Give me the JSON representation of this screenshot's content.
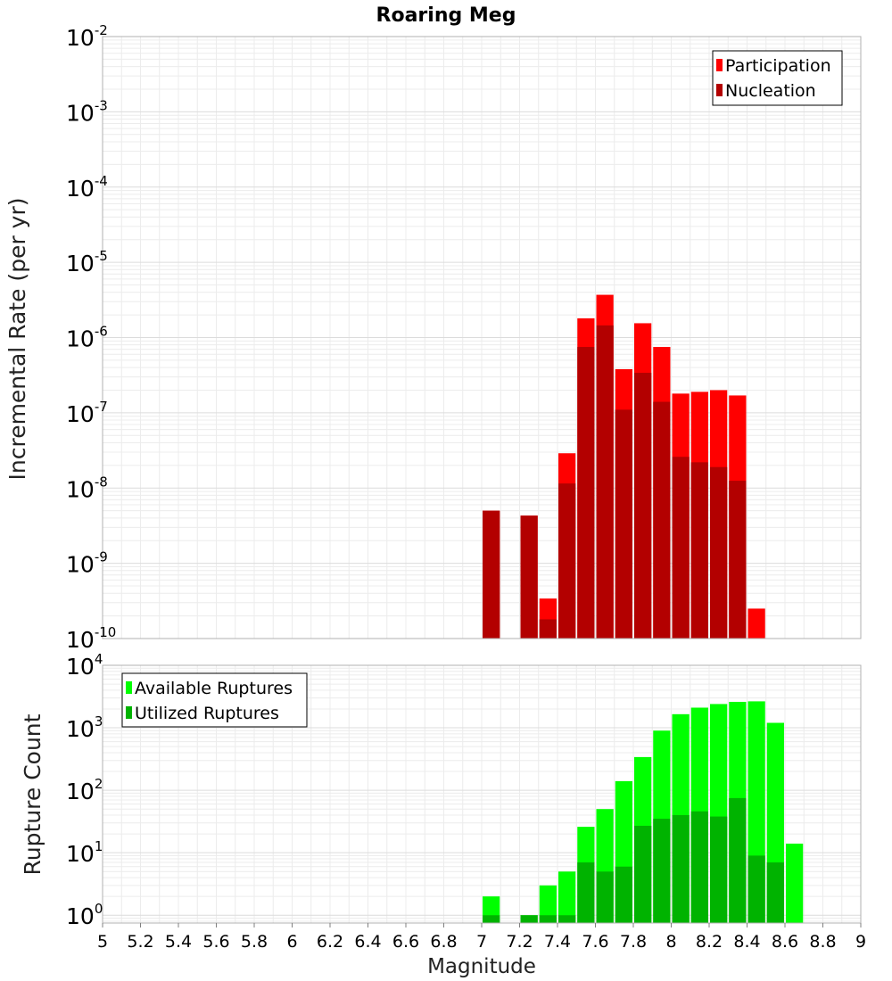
{
  "chart_data": [
    {
      "type": "bar",
      "title": "Roaring Meg",
      "ylabel": "Incremental Rate (per yr)",
      "xlabel": "",
      "yscale": "log",
      "xlim": [
        5,
        9
      ],
      "ylim": [
        1e-10,
        0.01
      ],
      "bin_width": 0.1,
      "grid": true,
      "legend_position": "top-right",
      "x": [
        7.05,
        7.15,
        7.25,
        7.35,
        7.45,
        7.55,
        7.65,
        7.75,
        7.85,
        7.95,
        8.05,
        8.15,
        8.25,
        8.35,
        8.45
      ],
      "series": [
        {
          "name": "Participation",
          "color": "#ff0000",
          "values": [
            5e-09,
            null,
            4.3e-09,
            3.4e-10,
            2.9e-08,
            1.8e-06,
            3.7e-06,
            3.8e-07,
            1.55e-06,
            7.5e-07,
            1.8e-07,
            1.9e-07,
            2e-07,
            1.7e-07,
            2.5e-10
          ]
        },
        {
          "name": "Nucleation",
          "color": "#b30000",
          "values": [
            5e-09,
            null,
            4.3e-09,
            1.8e-10,
            1.15e-08,
            7.5e-07,
            1.45e-06,
            1.1e-07,
            3.4e-07,
            1.4e-07,
            2.6e-08,
            2.2e-08,
            1.9e-08,
            1.25e-08,
            null
          ]
        }
      ]
    },
    {
      "type": "bar",
      "title": "",
      "ylabel": "Rupture Count",
      "xlabel": "Magnitude",
      "yscale": "log",
      "xlim": [
        5,
        9
      ],
      "ylim": [
        0.75,
        10000
      ],
      "bin_width": 0.1,
      "grid": true,
      "legend_position": "top-left",
      "x_ticks": [
        "5",
        "5.2",
        "5.4",
        "5.6",
        "5.8",
        "6",
        "6.2",
        "6.4",
        "6.6",
        "6.8",
        "7",
        "7.2",
        "7.4",
        "7.6",
        "7.8",
        "8",
        "8.2",
        "8.4",
        "8.6",
        "8.8",
        "9"
      ],
      "x": [
        7.05,
        7.15,
        7.25,
        7.35,
        7.45,
        7.55,
        7.65,
        7.75,
        7.85,
        7.95,
        8.05,
        8.15,
        8.25,
        8.35,
        8.45,
        8.55,
        8.65
      ],
      "series": [
        {
          "name": "Available Ruptures",
          "color": "#00ff00",
          "values": [
            2,
            null,
            1,
            3,
            5,
            26,
            50,
            140,
            340,
            900,
            1650,
            2100,
            2400,
            2600,
            2650,
            1200,
            14
          ]
        },
        {
          "name": "Utilized Ruptures",
          "color": "#00b300",
          "values": [
            1,
            null,
            1,
            1,
            1,
            7,
            5,
            6,
            27,
            35,
            40,
            46,
            38,
            75,
            9,
            7,
            null
          ]
        }
      ]
    }
  ]
}
